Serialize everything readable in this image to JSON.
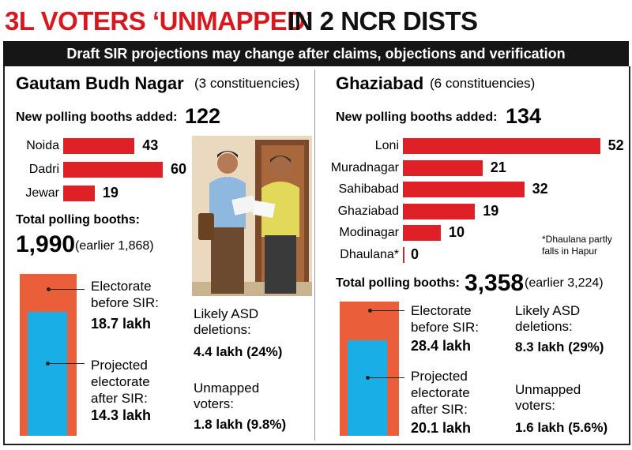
{
  "title": {
    "highlight": "3L VOTERS ‘UNMAPPED’",
    "rest": "IN 2 NCR DISTS"
  },
  "subtitle": "Draft SIR projections may change after claims, objections and verification",
  "districts": [
    {
      "name": "Gautam Budh Nagar",
      "note": "(3 constituencies)",
      "booths_added_label": "New polling booths added:",
      "booths_added": "122",
      "total_label": "Total polling booths:",
      "total": "1,990",
      "earlier": "(earlier 1,868)",
      "asd_label": "Likely ASD deletions:",
      "asd": "4.4 lakh (24%)",
      "unmapped_label": "Unmapped voters:",
      "unmapped": "1.8 lakh (9.8%)"
    },
    {
      "name": "Ghaziabad",
      "note": "(6 constituencies)",
      "booths_added_label": "New polling booths added:",
      "booths_added": "134",
      "total_label": "Total polling booths:",
      "total": "3,358",
      "earlier": "(earlier 3,224)",
      "asd_label": "Likely ASD deletions:",
      "asd": "8.3 lakh (29%)",
      "unmapped_label": "Unmapped voters:",
      "unmapped": "1.6 lakh (5.6%)"
    }
  ],
  "footnote": "*Dhaulana partly falls in Hapur",
  "chart_data": [
    {
      "type": "hbar",
      "categories": [
        "Noida",
        "Dadri",
        "Jewar"
      ],
      "values": [
        43,
        60,
        19
      ],
      "color": "#e02027"
    },
    {
      "type": "hbar",
      "categories": [
        "Loni",
        "Muradnagar",
        "Sahibabad",
        "Ghaziabad",
        "Modinagar",
        "Dhaulana*"
      ],
      "values": [
        52,
        21,
        32,
        19,
        10,
        0
      ],
      "color": "#e02027"
    },
    {
      "type": "overlap",
      "categories": [
        "Electorate before SIR:",
        "Projected electorate after SIR:"
      ],
      "values": [
        18.7,
        14.3
      ],
      "value_labels": [
        "18.7 lakh",
        "14.3 lakh"
      ],
      "colors": [
        "#ea5f3a",
        "#19aee6"
      ]
    },
    {
      "type": "overlap",
      "categories": [
        "Electorate before SIR:",
        "Projected electorate after SIR:"
      ],
      "values": [
        28.4,
        20.1
      ],
      "value_labels": [
        "28.4 lakh",
        "20.1 lakh"
      ],
      "colors": [
        "#ea5f3a",
        "#19aee6"
      ]
    }
  ]
}
